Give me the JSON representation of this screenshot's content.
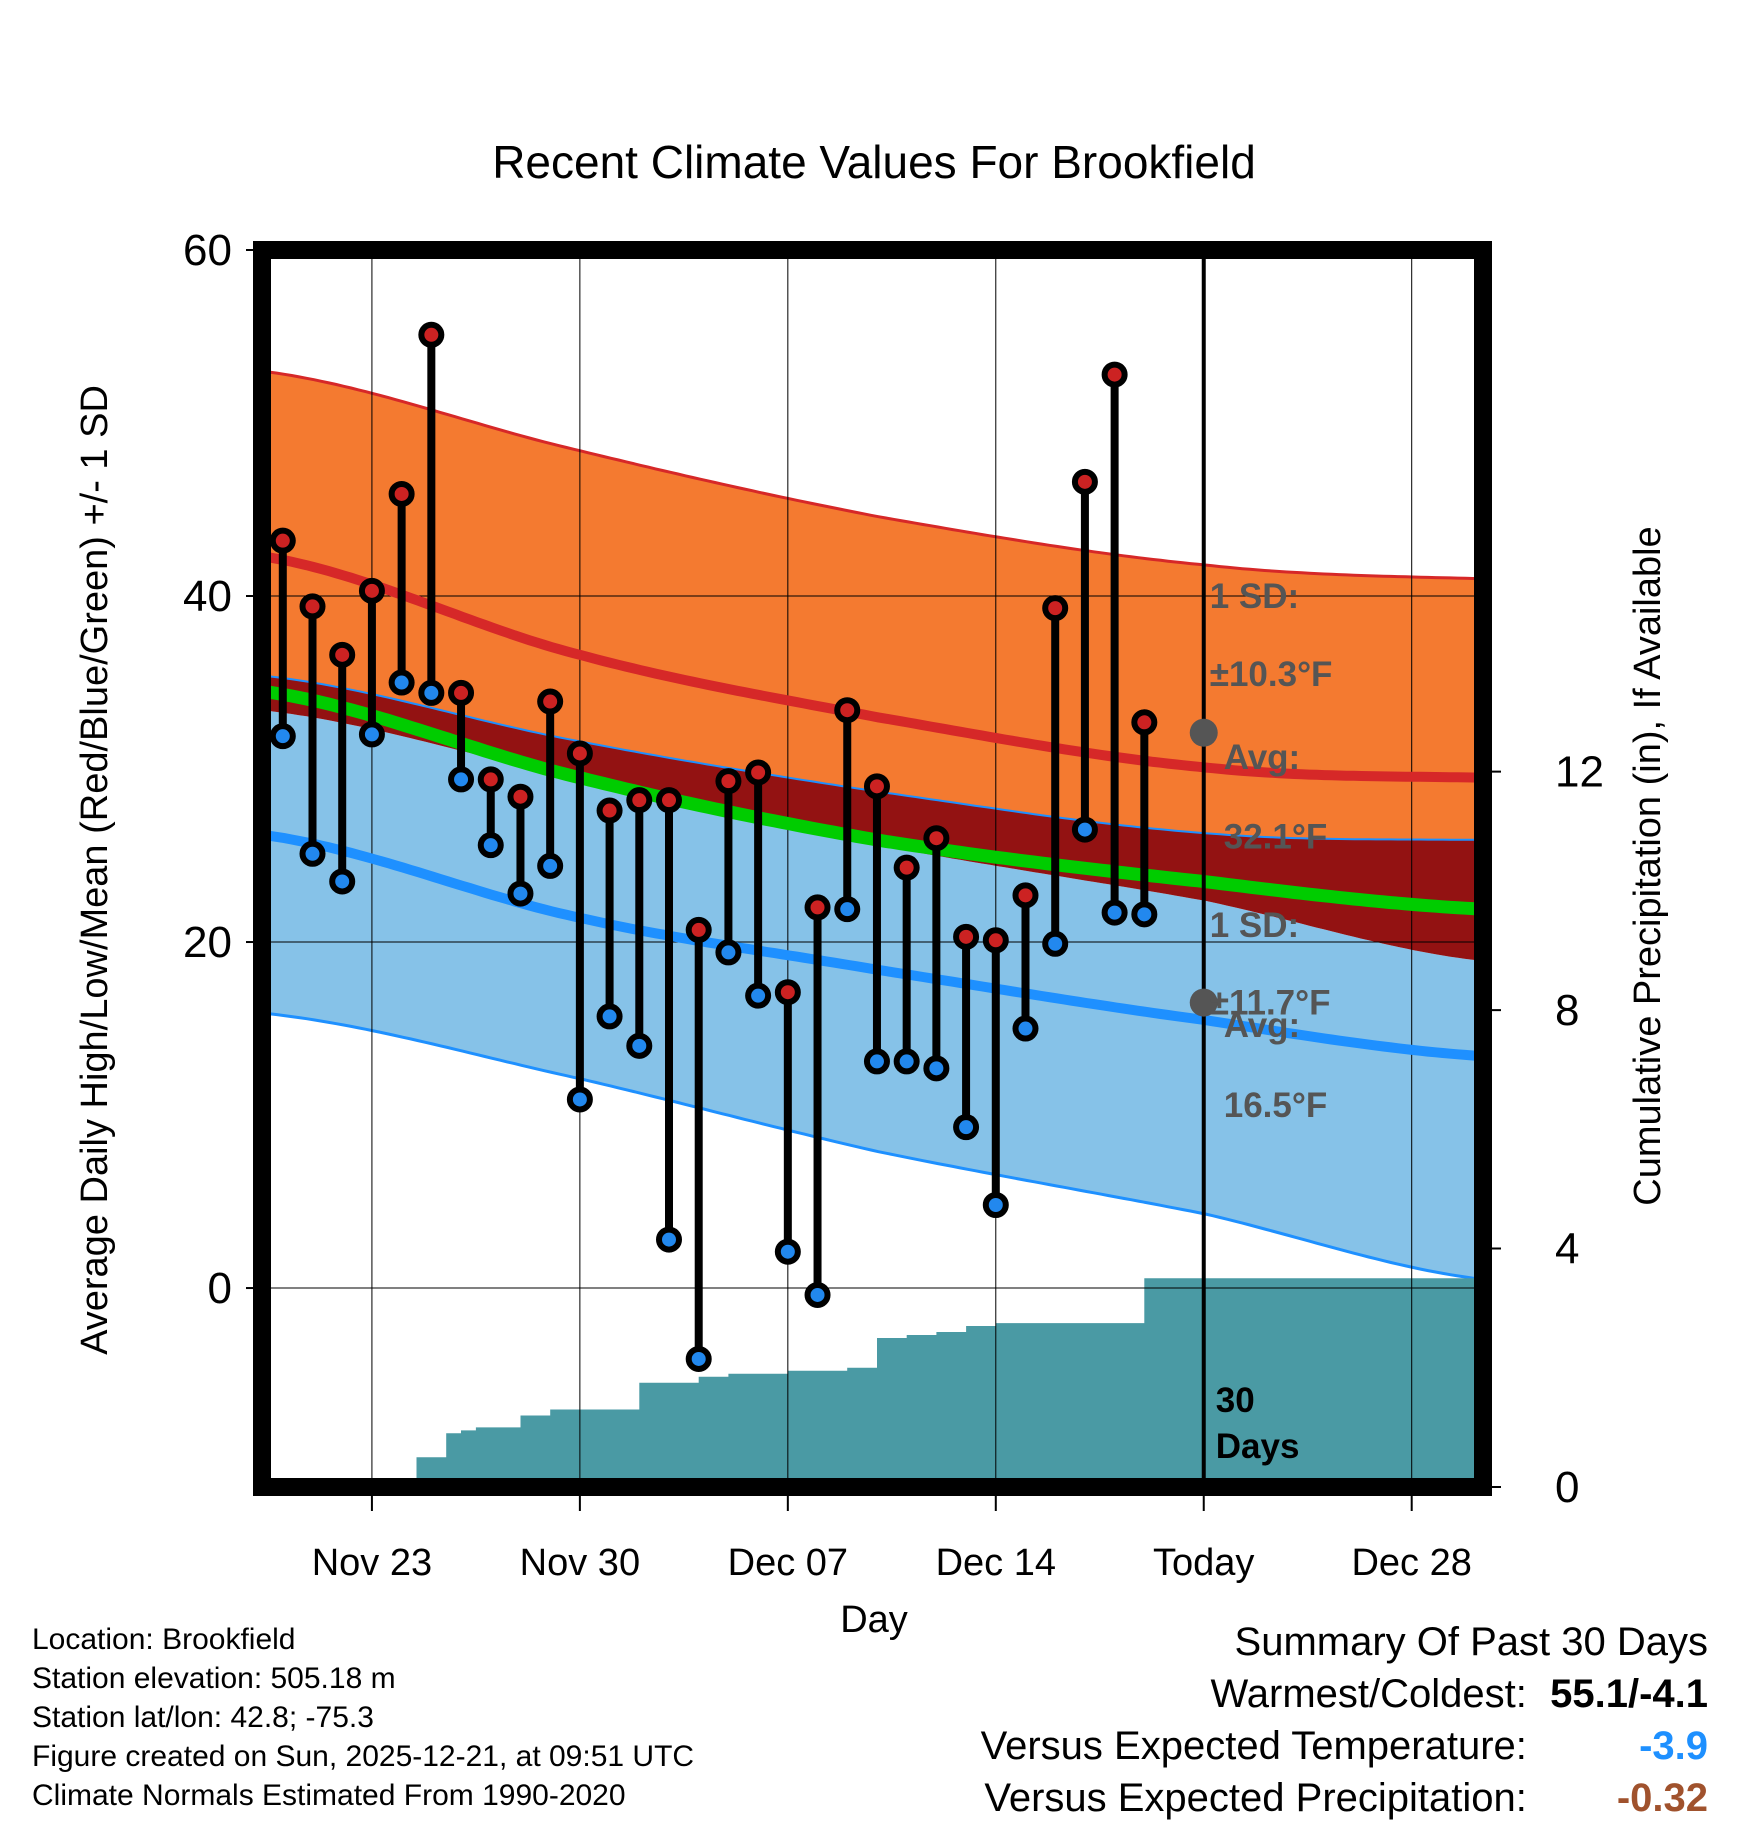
{
  "chart_data": {
    "type": "line",
    "title": "Recent Climate Values For Brookfield",
    "xlabel": "Day",
    "ylabel": "Average Daily High/Low/Mean (Red/Blue/Green) +/- 1 SD",
    "y2label": "Cumulative Precipitation (in), If Available",
    "ylim": [
      -11.5,
      60
    ],
    "y2lim": [
      0,
      20.75
    ],
    "xlim": [
      -0.7,
      40.4
    ],
    "yticks": [
      0,
      20,
      40,
      60
    ],
    "y2ticks": [
      0,
      4,
      8,
      12
    ],
    "xticks": [
      {
        "day": 3,
        "label": "Nov 23"
      },
      {
        "day": 10,
        "label": "Nov 30"
      },
      {
        "day": 17,
        "label": "Dec 07"
      },
      {
        "day": 24,
        "label": "Dec 14"
      },
      {
        "day": 31,
        "label": "Today"
      },
      {
        "day": 38,
        "label": "Dec 28"
      }
    ],
    "grid": true,
    "today_day": 31,
    "today_label_lines": [
      "30",
      "Days"
    ],
    "normals": {
      "days": [
        -0.7,
        10,
        20,
        31,
        40.4
      ],
      "high_mean": [
        42.3,
        36.6,
        33.0,
        30.1,
        29.5
      ],
      "high_upper": [
        53.0,
        48.4,
        44.6,
        41.8,
        41.0
      ],
      "high_lower": [
        35.4,
        31.6,
        28.7,
        26.3,
        25.9
      ],
      "low_mean": [
        26.2,
        21.4,
        18.4,
        15.5,
        13.4
      ],
      "low_upper": [
        33.4,
        29.4,
        25.6,
        22.4,
        18.9
      ],
      "low_lower": [
        15.9,
        12.1,
        7.9,
        4.3,
        0.5
      ],
      "avg_mean": [
        34.5,
        29.5,
        25.9,
        23.5,
        21.9
      ]
    },
    "series": [
      {
        "name": "High",
        "days": [
          0,
          1,
          2,
          3,
          4,
          5,
          6,
          7,
          8,
          9,
          10,
          11,
          12,
          13,
          14,
          15,
          16,
          17,
          18,
          19,
          20,
          21,
          22,
          23,
          24,
          25,
          26,
          27,
          28,
          29,
          30
        ],
        "values": [
          43.2,
          39.4,
          36.6,
          40.3,
          45.9,
          55.1,
          34.4,
          29.4,
          28.4,
          33.9,
          30.9,
          27.6,
          28.2,
          28.2,
          20.7,
          29.3,
          29.8,
          17.1,
          22.0,
          33.4,
          29.0,
          24.3,
          26.0,
          20.3,
          20.1,
          22.7,
          39.3,
          46.6,
          52.8,
          32.7,
          null
        ]
      },
      {
        "name": "Low",
        "days": [
          0,
          1,
          2,
          3,
          4,
          5,
          6,
          7,
          8,
          9,
          10,
          11,
          12,
          13,
          14,
          15,
          16,
          17,
          18,
          19,
          20,
          21,
          22,
          23,
          24,
          25,
          26,
          27,
          28,
          29,
          30
        ],
        "values": [
          31.9,
          25.1,
          23.5,
          32.0,
          35.0,
          34.4,
          29.4,
          25.6,
          22.8,
          24.4,
          10.9,
          15.7,
          14.0,
          2.8,
          -4.1,
          19.4,
          16.9,
          2.1,
          -0.4,
          21.9,
          13.1,
          13.1,
          12.7,
          9.3,
          4.8,
          15.0,
          19.9,
          26.5,
          21.7,
          21.6,
          null
        ]
      },
      {
        "name": "Cumulative Precipitation",
        "days": [
          -0.7,
          3.3,
          4.5,
          5.5,
          6,
          6.5,
          7,
          8,
          9,
          10,
          11,
          12,
          13,
          14,
          15,
          16,
          17,
          18,
          19,
          20,
          21,
          22,
          23,
          24,
          25,
          26,
          27,
          28,
          29,
          30,
          31,
          40.4
        ],
        "values": [
          0,
          0,
          0.5,
          0.9,
          0.95,
          1.0,
          1.0,
          1.2,
          1.3,
          1.3,
          1.3,
          1.75,
          1.75,
          1.85,
          1.9,
          1.9,
          1.95,
          1.95,
          2.0,
          2.5,
          2.55,
          2.6,
          2.7,
          2.75,
          2.75,
          2.75,
          2.75,
          2.75,
          3.5,
          3.5,
          3.5,
          3.5
        ]
      }
    ],
    "annotations": {
      "high_sd_lines": [
        "1 SD:",
        "±10.3°F"
      ],
      "high_avg_lines": [
        "Avg:",
        "32.1°F"
      ],
      "high_avg_value": 32.1,
      "low_sd_lines": [
        "1 SD:",
        "±11.7°F"
      ],
      "low_avg_lines": [
        "Avg:",
        "16.5°F"
      ],
      "low_avg_value": 16.5
    }
  },
  "info": {
    "lines": [
      "Location: Brookfield",
      "Station elevation: 505.18 m",
      "Station lat/lon: 42.8; -75.3",
      "Figure created on Sun, 2025-12-21, at 09:51 UTC",
      "Climate Normals Estimated From 1990-2020"
    ]
  },
  "summary": {
    "title": "Summary Of Past 30 Days",
    "rows": [
      {
        "label": "Warmest/Coldest:",
        "value": "55.1/-4.1",
        "color": "#000000"
      },
      {
        "label": "Versus Expected Temperature:",
        "value": "-3.9",
        "color": "#1E90FF"
      },
      {
        "label": "Versus Expected Precipitation:",
        "value": "-0.32",
        "color": "#A0522D"
      }
    ]
  },
  "colors": {
    "high_band": "#F47A30",
    "high_line": "#D62828",
    "inner_band": "#931212",
    "avg_line": "#00CC00",
    "low_band": "#86C2E8",
    "low_line": "#1E90FF",
    "precip": "#4A9AA4",
    "high_dot": "#CC2222",
    "low_dot": "#2288EE",
    "annot": "#555555"
  }
}
